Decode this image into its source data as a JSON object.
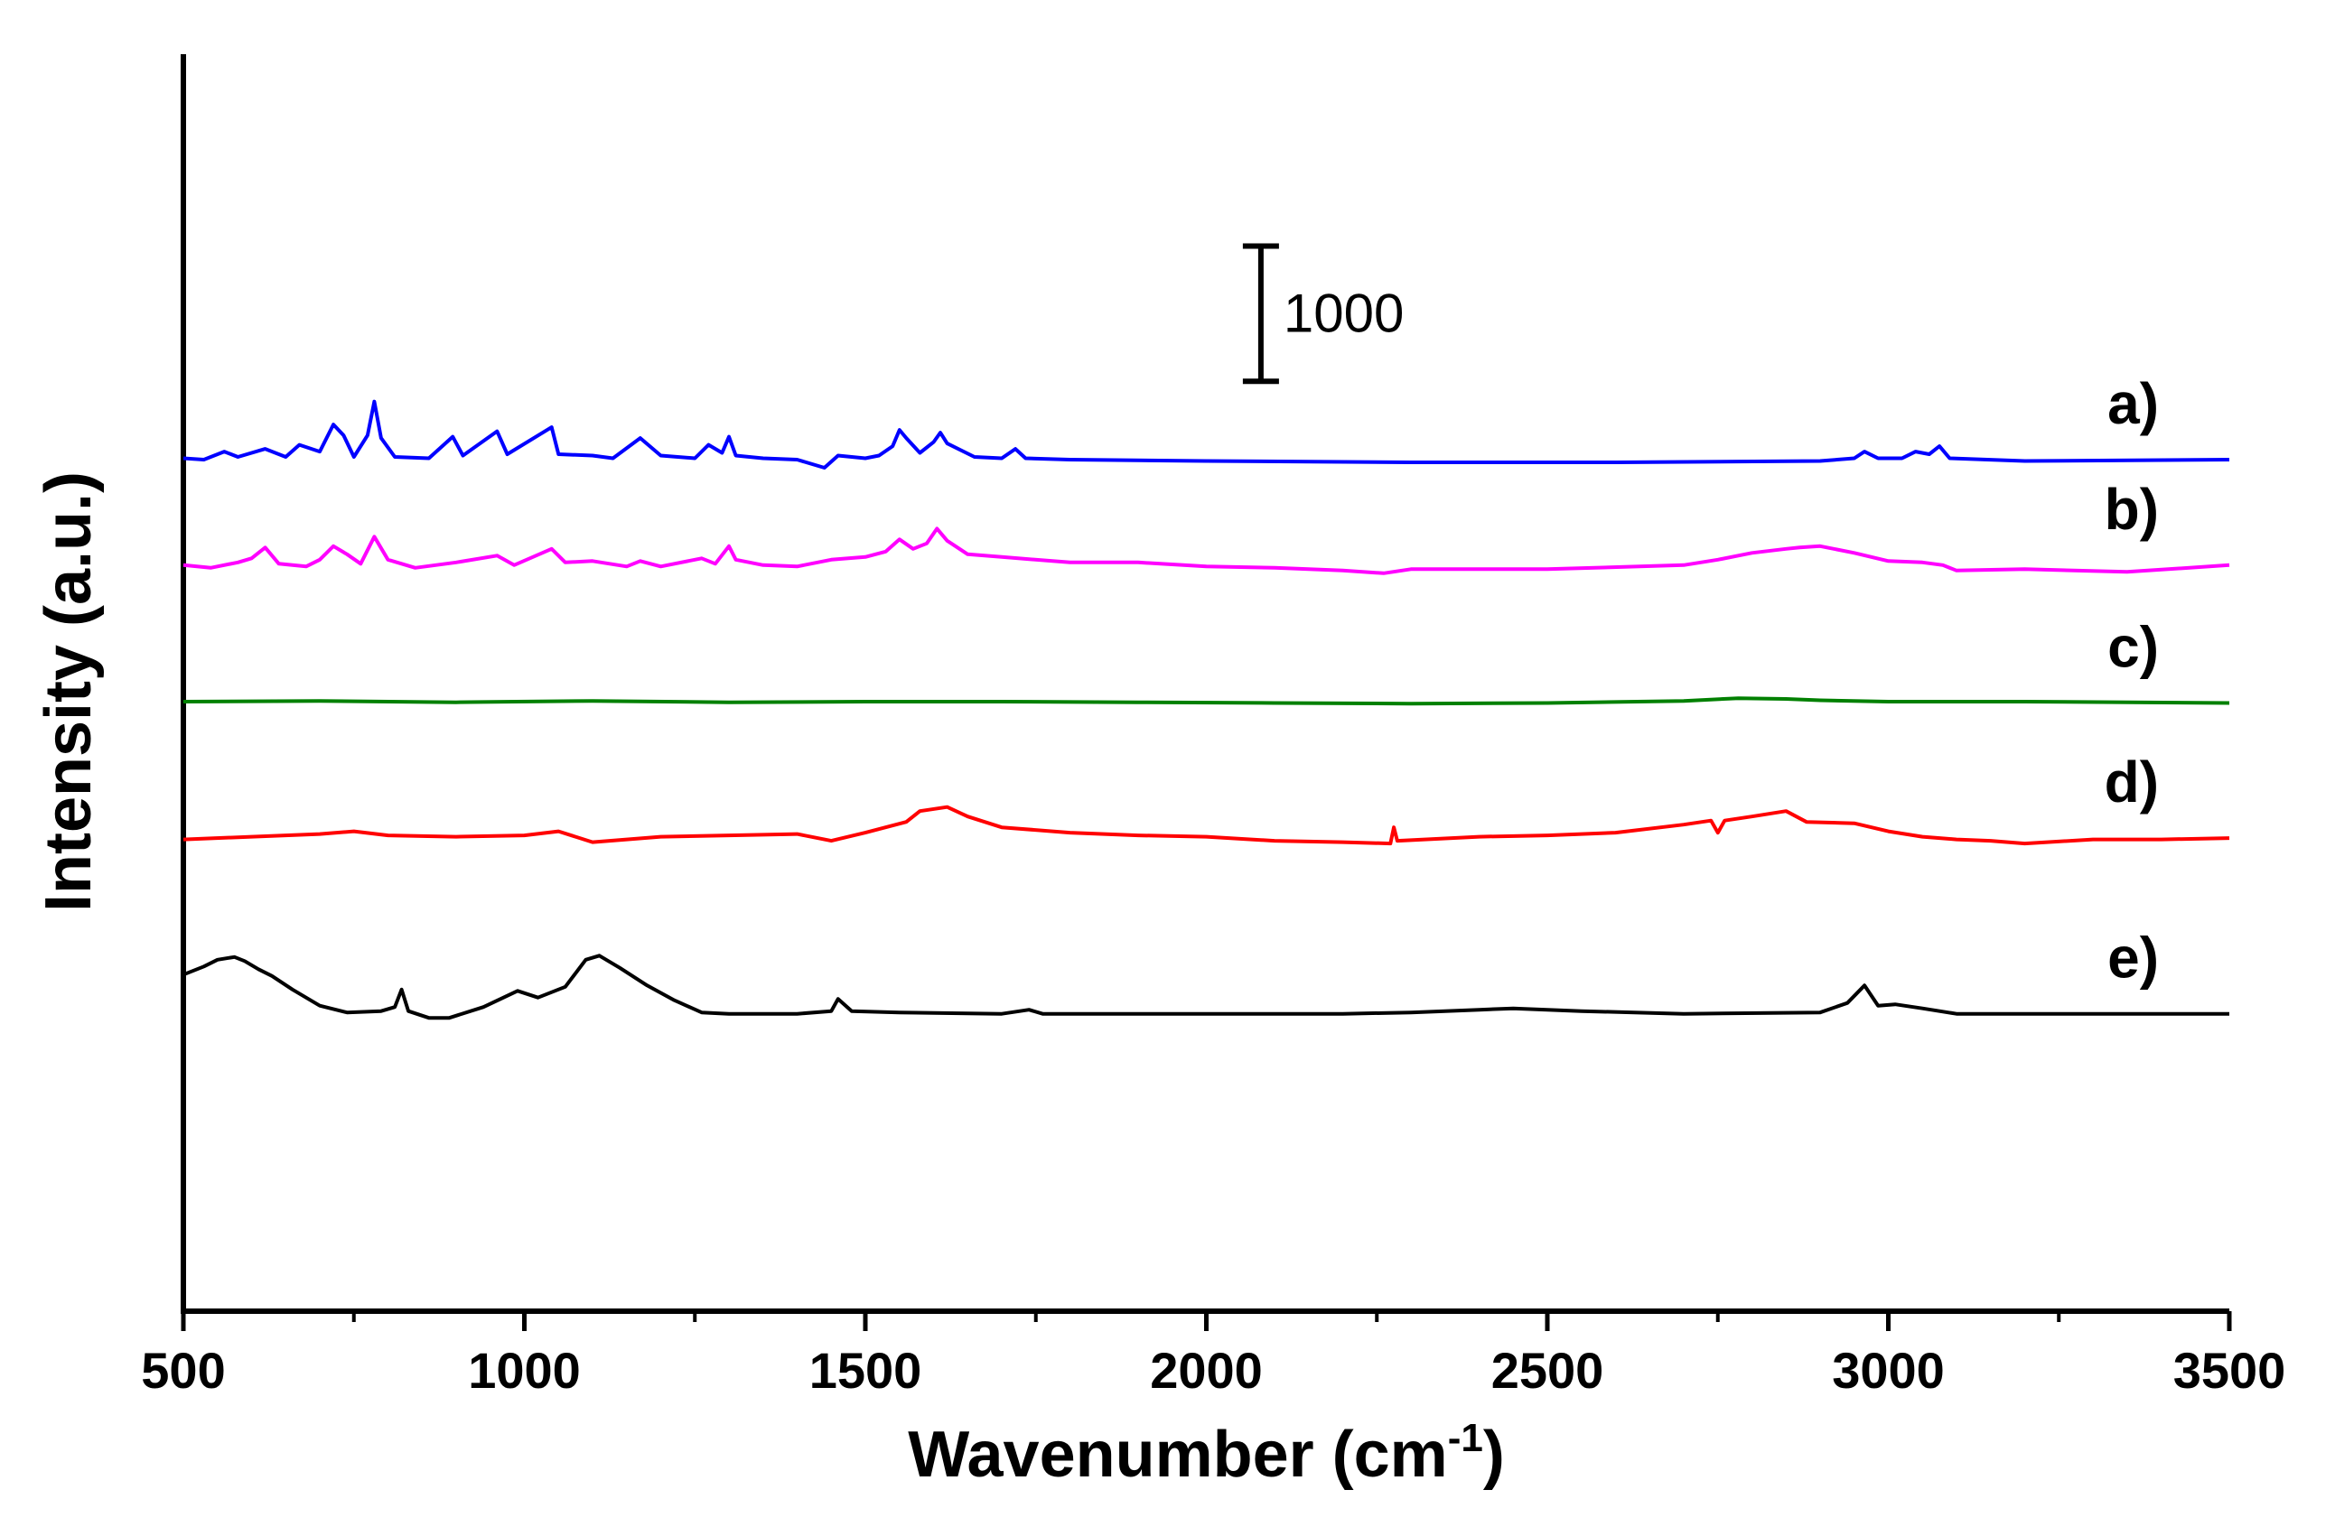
{
  "chart_data": {
    "type": "line",
    "title": "",
    "xlabel": "Wavenumber (cm",
    "xlabel_superscript": "-1",
    "xlabel_suffix": ")",
    "ylabel": "Intensity (a.u.)",
    "xlim": [
      500,
      3500
    ],
    "ylim": [
      -3300,
      6000
    ],
    "x_ticks": [
      "500",
      "1000",
      "1500",
      "2000",
      "2500",
      "3000",
      "3500"
    ],
    "x_tick_values": [
      500,
      1000,
      1500,
      2000,
      2500,
      3000,
      3500
    ],
    "grid": false,
    "y_axis_ticks": false,
    "scale_bar": {
      "label": "1000",
      "value": 1000,
      "x": 2080,
      "y_from": 3580,
      "y_to": 4580
    },
    "series": [
      {
        "name": "a)",
        "color": "#0000ff",
        "offset": 3000,
        "points": [
          [
            500,
            10
          ],
          [
            530,
            0
          ],
          [
            560,
            60
          ],
          [
            580,
            20
          ],
          [
            620,
            80
          ],
          [
            650,
            20
          ],
          [
            670,
            110
          ],
          [
            700,
            60
          ],
          [
            720,
            260
          ],
          [
            735,
            180
          ],
          [
            750,
            20
          ],
          [
            770,
            180
          ],
          [
            780,
            430
          ],
          [
            790,
            160
          ],
          [
            810,
            20
          ],
          [
            860,
            10
          ],
          [
            895,
            170
          ],
          [
            910,
            30
          ],
          [
            960,
            210
          ],
          [
            975,
            40
          ],
          [
            1040,
            240
          ],
          [
            1050,
            40
          ],
          [
            1100,
            30
          ],
          [
            1130,
            10
          ],
          [
            1170,
            160
          ],
          [
            1200,
            30
          ],
          [
            1250,
            10
          ],
          [
            1270,
            110
          ],
          [
            1290,
            50
          ],
          [
            1300,
            170
          ],
          [
            1310,
            30
          ],
          [
            1350,
            10
          ],
          [
            1400,
            0
          ],
          [
            1440,
            -60
          ],
          [
            1460,
            30
          ],
          [
            1500,
            10
          ],
          [
            1520,
            30
          ],
          [
            1540,
            100
          ],
          [
            1550,
            220
          ],
          [
            1560,
            160
          ],
          [
            1580,
            50
          ],
          [
            1600,
            130
          ],
          [
            1610,
            200
          ],
          [
            1620,
            120
          ],
          [
            1660,
            20
          ],
          [
            1700,
            10
          ],
          [
            1720,
            80
          ],
          [
            1735,
            10
          ],
          [
            1800,
            0
          ],
          [
            2000,
            -10
          ],
          [
            2300,
            -20
          ],
          [
            2600,
            -20
          ],
          [
            2900,
            -10
          ],
          [
            2950,
            10
          ],
          [
            2965,
            60
          ],
          [
            2985,
            10
          ],
          [
            3020,
            10
          ],
          [
            3040,
            60
          ],
          [
            3060,
            40
          ],
          [
            3075,
            100
          ],
          [
            3090,
            10
          ],
          [
            3200,
            -10
          ],
          [
            3500,
            0
          ]
        ]
      },
      {
        "name": "b)",
        "color": "#ff00ff",
        "offset": 2200,
        "points": [
          [
            500,
            20
          ],
          [
            540,
            0
          ],
          [
            580,
            40
          ],
          [
            600,
            70
          ],
          [
            620,
            150
          ],
          [
            640,
            30
          ],
          [
            680,
            10
          ],
          [
            700,
            60
          ],
          [
            720,
            160
          ],
          [
            740,
            100
          ],
          [
            760,
            30
          ],
          [
            780,
            230
          ],
          [
            800,
            60
          ],
          [
            840,
            0
          ],
          [
            900,
            40
          ],
          [
            960,
            90
          ],
          [
            985,
            20
          ],
          [
            1040,
            140
          ],
          [
            1060,
            40
          ],
          [
            1100,
            50
          ],
          [
            1150,
            10
          ],
          [
            1170,
            50
          ],
          [
            1200,
            10
          ],
          [
            1260,
            70
          ],
          [
            1280,
            30
          ],
          [
            1300,
            160
          ],
          [
            1310,
            60
          ],
          [
            1350,
            20
          ],
          [
            1400,
            10
          ],
          [
            1450,
            60
          ],
          [
            1500,
            80
          ],
          [
            1530,
            120
          ],
          [
            1550,
            210
          ],
          [
            1570,
            140
          ],
          [
            1590,
            180
          ],
          [
            1605,
            290
          ],
          [
            1620,
            200
          ],
          [
            1650,
            100
          ],
          [
            1700,
            80
          ],
          [
            1800,
            40
          ],
          [
            1900,
            40
          ],
          [
            2000,
            10
          ],
          [
            2100,
            0
          ],
          [
            2200,
            -20
          ],
          [
            2260,
            -40
          ],
          [
            2300,
            -10
          ],
          [
            2500,
            -10
          ],
          [
            2700,
            20
          ],
          [
            2750,
            60
          ],
          [
            2800,
            110
          ],
          [
            2850,
            140
          ],
          [
            2870,
            150
          ],
          [
            2900,
            160
          ],
          [
            2950,
            110
          ],
          [
            3000,
            50
          ],
          [
            3050,
            40
          ],
          [
            3080,
            20
          ],
          [
            3100,
            -20
          ],
          [
            3200,
            -10
          ],
          [
            3350,
            -30
          ],
          [
            3500,
            20
          ]
        ]
      },
      {
        "name": "c)",
        "color": "#008000",
        "offset": 1200,
        "points": [
          [
            500,
            10
          ],
          [
            700,
            15
          ],
          [
            900,
            5
          ],
          [
            1100,
            15
          ],
          [
            1300,
            5
          ],
          [
            1500,
            10
          ],
          [
            1700,
            10
          ],
          [
            1900,
            5
          ],
          [
            2100,
            0
          ],
          [
            2300,
            -5
          ],
          [
            2500,
            0
          ],
          [
            2700,
            15
          ],
          [
            2780,
            35
          ],
          [
            2850,
            30
          ],
          [
            2900,
            20
          ],
          [
            3000,
            10
          ],
          [
            3200,
            10
          ],
          [
            3500,
            0
          ]
        ]
      },
      {
        "name": "d)",
        "color": "#ff0000",
        "offset": 200,
        "points": [
          [
            500,
            -10
          ],
          [
            600,
            10
          ],
          [
            700,
            30
          ],
          [
            750,
            50
          ],
          [
            800,
            20
          ],
          [
            900,
            10
          ],
          [
            1000,
            20
          ],
          [
            1050,
            50
          ],
          [
            1100,
            -30
          ],
          [
            1200,
            10
          ],
          [
            1300,
            20
          ],
          [
            1400,
            30
          ],
          [
            1450,
            -20
          ],
          [
            1500,
            40
          ],
          [
            1560,
            120
          ],
          [
            1580,
            200
          ],
          [
            1620,
            230
          ],
          [
            1650,
            160
          ],
          [
            1700,
            80
          ],
          [
            1800,
            40
          ],
          [
            1900,
            20
          ],
          [
            2000,
            10
          ],
          [
            2100,
            -20
          ],
          [
            2200,
            -30
          ],
          [
            2270,
            -40
          ],
          [
            2275,
            80
          ],
          [
            2280,
            -20
          ],
          [
            2400,
            10
          ],
          [
            2500,
            20
          ],
          [
            2600,
            40
          ],
          [
            2700,
            100
          ],
          [
            2740,
            130
          ],
          [
            2750,
            40
          ],
          [
            2760,
            130
          ],
          [
            2800,
            160
          ],
          [
            2850,
            200
          ],
          [
            2880,
            120
          ],
          [
            2950,
            110
          ],
          [
            3000,
            50
          ],
          [
            3050,
            10
          ],
          [
            3100,
            -10
          ],
          [
            3150,
            -20
          ],
          [
            3200,
            -40
          ],
          [
            3300,
            -10
          ],
          [
            3400,
            -10
          ],
          [
            3500,
            0
          ]
        ]
      },
      {
        "name": "e)",
        "color": "#000000",
        "offset": -1100,
        "points": [
          [
            500,
            290
          ],
          [
            530,
            350
          ],
          [
            550,
            400
          ],
          [
            575,
            420
          ],
          [
            590,
            390
          ],
          [
            610,
            330
          ],
          [
            630,
            280
          ],
          [
            660,
            180
          ],
          [
            700,
            60
          ],
          [
            740,
            10
          ],
          [
            790,
            20
          ],
          [
            810,
            50
          ],
          [
            820,
            180
          ],
          [
            830,
            20
          ],
          [
            860,
            -30
          ],
          [
            890,
            -30
          ],
          [
            940,
            50
          ],
          [
            990,
            170
          ],
          [
            1020,
            120
          ],
          [
            1060,
            200
          ],
          [
            1090,
            400
          ],
          [
            1110,
            430
          ],
          [
            1140,
            340
          ],
          [
            1180,
            210
          ],
          [
            1220,
            100
          ],
          [
            1260,
            10
          ],
          [
            1300,
            0
          ],
          [
            1400,
            0
          ],
          [
            1450,
            20
          ],
          [
            1460,
            110
          ],
          [
            1480,
            20
          ],
          [
            1550,
            10
          ],
          [
            1700,
            0
          ],
          [
            1740,
            30
          ],
          [
            1760,
            0
          ],
          [
            2000,
            0
          ],
          [
            2200,
            0
          ],
          [
            2300,
            10
          ],
          [
            2400,
            30
          ],
          [
            2450,
            40
          ],
          [
            2550,
            20
          ],
          [
            2700,
            0
          ],
          [
            2900,
            10
          ],
          [
            2940,
            80
          ],
          [
            2965,
            210
          ],
          [
            2985,
            60
          ],
          [
            3010,
            70
          ],
          [
            3050,
            40
          ],
          [
            3100,
            0
          ],
          [
            3300,
            0
          ],
          [
            3500,
            0
          ]
        ]
      }
    ]
  }
}
